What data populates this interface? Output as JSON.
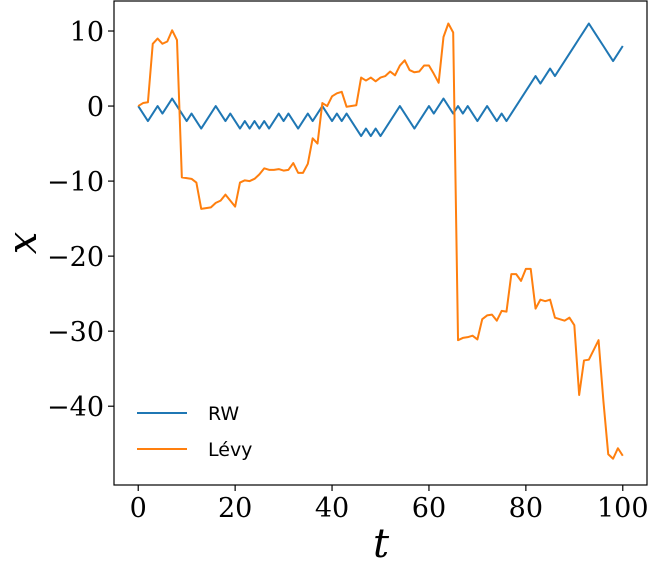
{
  "chart_data": {
    "type": "line",
    "xlabel": "t",
    "ylabel": "x",
    "xlim": [
      -5,
      105
    ],
    "ylim": [
      -50.5,
      14
    ],
    "xticks": [
      0,
      20,
      40,
      60,
      80,
      100
    ],
    "yticks": [
      10,
      0,
      -10,
      -20,
      -30,
      -40
    ],
    "xtick_labels": [
      "0",
      "20",
      "40",
      "60",
      "80",
      "100"
    ],
    "ytick_labels": [
      "10",
      "0",
      "−10",
      "−20",
      "−30",
      "−40"
    ],
    "grid": false,
    "legend": "lower-left",
    "series": [
      {
        "name": "RW",
        "color": "#1f77b4",
        "x": [
          0,
          1,
          2,
          3,
          4,
          5,
          6,
          7,
          8,
          9,
          10,
          11,
          12,
          13,
          14,
          15,
          16,
          17,
          18,
          19,
          20,
          21,
          22,
          23,
          24,
          25,
          26,
          27,
          28,
          29,
          30,
          31,
          32,
          33,
          34,
          35,
          36,
          37,
          38,
          39,
          40,
          41,
          42,
          43,
          44,
          45,
          46,
          47,
          48,
          49,
          50,
          51,
          52,
          53,
          54,
          55,
          56,
          57,
          58,
          59,
          60,
          61,
          62,
          63,
          64,
          65,
          66,
          67,
          68,
          69,
          70,
          71,
          72,
          73,
          74,
          75,
          76,
          77,
          78,
          79,
          80,
          81,
          82,
          83,
          84,
          85,
          86,
          87,
          88,
          89,
          90,
          91,
          92,
          93,
          94,
          95,
          96,
          97,
          98,
          99,
          100
        ],
        "values": [
          0,
          -1,
          -2,
          -1,
          0,
          -1,
          0,
          1,
          0,
          -1,
          -2,
          -1,
          -2,
          -3,
          -2,
          -1,
          0,
          -1,
          -2,
          -1,
          -2,
          -3,
          -2,
          -3,
          -2,
          -3,
          -2,
          -3,
          -2,
          -1,
          -2,
          -1,
          -2,
          -3,
          -2,
          -1,
          -2,
          -1,
          0,
          -1,
          -2,
          -1,
          -2,
          -1,
          -2,
          -3,
          -4,
          -3,
          -4,
          -3,
          -4,
          -3,
          -2,
          -1,
          0,
          -1,
          -2,
          -3,
          -2,
          -1,
          0,
          -1,
          0,
          1,
          0,
          -1,
          0,
          -1,
          0,
          -1,
          -2,
          -1,
          0,
          -1,
          -2,
          -1,
          -2,
          -1,
          0,
          1,
          2,
          3,
          4,
          3,
          4,
          5,
          4,
          5,
          6,
          7,
          8,
          9,
          10,
          11,
          10,
          9,
          8,
          7,
          6,
          7,
          8
        ]
      },
      {
        "name": "Lévy",
        "color": "#ff7f0e",
        "x": [
          0,
          1,
          2,
          3,
          4,
          5,
          6,
          7,
          8,
          9,
          10,
          11,
          12,
          13,
          14,
          15,
          16,
          17,
          18,
          19,
          20,
          21,
          22,
          23,
          24,
          25,
          26,
          27,
          28,
          29,
          30,
          31,
          32,
          33,
          34,
          35,
          36,
          37,
          38,
          39,
          40,
          41,
          42,
          43,
          44,
          45,
          46,
          47,
          48,
          49,
          50,
          51,
          52,
          53,
          54,
          55,
          56,
          57,
          58,
          59,
          60,
          61,
          62,
          63,
          64,
          65,
          66,
          67,
          68,
          69,
          70,
          71,
          72,
          73,
          74,
          75,
          76,
          77,
          78,
          79,
          80,
          81,
          82,
          83,
          84,
          85,
          86,
          87,
          88,
          89,
          90,
          91,
          92,
          93,
          94,
          95,
          96,
          97,
          98,
          99,
          100
        ],
        "values": [
          0,
          0.4,
          0.5,
          8.3,
          9,
          8.3,
          8.6,
          10.1,
          8.8,
          -9.5,
          -9.6,
          -9.7,
          -10.2,
          -13.7,
          -13.6,
          -13.5,
          -12.9,
          -12.6,
          -11.8,
          -12.6,
          -13.4,
          -10.2,
          -9.9,
          -10,
          -9.7,
          -9.1,
          -8.3,
          -8.5,
          -8.5,
          -8.4,
          -8.6,
          -8.5,
          -7.6,
          -8.9,
          -8.9,
          -7.7,
          -4.3,
          -5,
          0.4,
          0,
          1.3,
          1.7,
          1.9,
          -0.1,
          0,
          0.1,
          3.8,
          3.4,
          3.8,
          3.3,
          3.8,
          4,
          4.6,
          4.1,
          5.4,
          6.1,
          4.8,
          4.5,
          4.6,
          5.4,
          5.4,
          4.3,
          3.1,
          9.2,
          11,
          9.8,
          -31.2,
          -30.9,
          -30.8,
          -30.6,
          -31.1,
          -28.4,
          -27.9,
          -27.8,
          -28.6,
          -27.3,
          -27.4,
          -22.4,
          -22.4,
          -23.3,
          -21.7,
          -21.7,
          -27,
          -25.8,
          -26,
          -25.8,
          -28.2,
          -28.4,
          -28.6,
          -28.2,
          -29.2,
          -38.5,
          -33.9,
          -33.8,
          -32.5,
          -31.2,
          -39.3,
          -46.4,
          -47,
          -45.6,
          -46.6
        ]
      }
    ]
  }
}
